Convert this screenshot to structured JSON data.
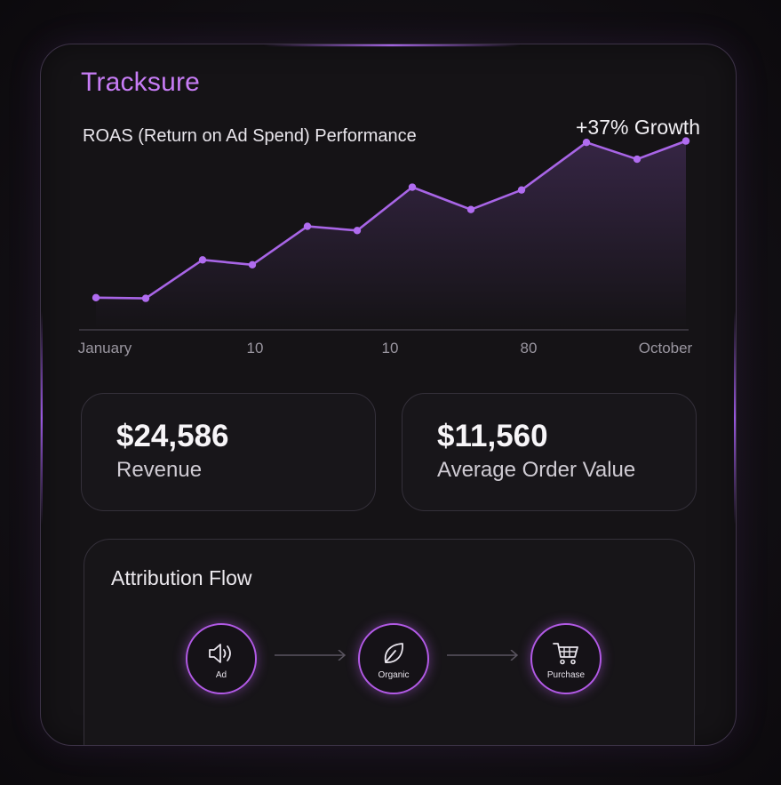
{
  "brand": "Tracksure",
  "chart_title": "ROAS (Return on Ad Spend) Performance",
  "growth_label": "+37% Growth",
  "colors": {
    "accent": "#a865e6",
    "brand": "#c77cf5",
    "node_ring": "#b25ae6"
  },
  "chart_data": {
    "type": "line",
    "x_tick_labels": [
      "January",
      "10",
      "10",
      "80",
      "October"
    ],
    "values": [
      23,
      22.5,
      50,
      46.5,
      74,
      71,
      102,
      86,
      100,
      134,
      122,
      135
    ],
    "ylim": [
      0,
      150
    ],
    "grid": false,
    "area_fill": true
  },
  "stats": [
    {
      "value": "$24,586",
      "label": "Revenue"
    },
    {
      "value": "$11,560",
      "label": "Average Order Value"
    }
  ],
  "flow": {
    "title": "Attribution Flow",
    "nodes": [
      {
        "label": "Ad",
        "icon": "speaker-icon"
      },
      {
        "label": "Organic",
        "icon": "leaf-icon"
      },
      {
        "label": "Purchase",
        "icon": "cart-icon"
      }
    ]
  }
}
